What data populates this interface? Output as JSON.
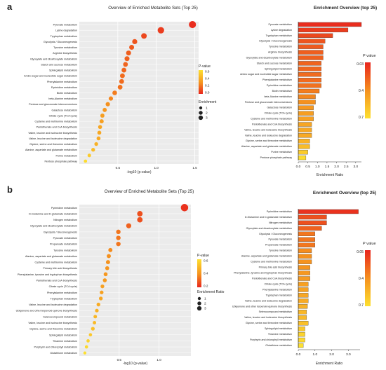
{
  "palette": {
    "high": "#fde030",
    "mid": "#f5901e",
    "low": "#e8251e",
    "panel_bg": "#ebebeb",
    "grid": "#ffffff",
    "bar_edge": "#333333"
  },
  "chart_data": [
    {
      "panel": "a",
      "type": "scatter",
      "title": "Overview of Enriched Metabolite Sets (Top 25)",
      "xlabel": "-log10 (p-value)",
      "xlim": [
        0,
        1.55
      ],
      "xticks": [
        "0.5",
        "1.0",
        "1.5"
      ],
      "categories": [
        "Pyruvate metabolism",
        "Lysine degradation",
        "Tryptophan metabolism",
        "Glycolysis / Gluconeogenesis",
        "Tyrosine metabolism",
        "Arginine biosynthesis",
        "Glyoxylate and dicarboxylate metabolism",
        "Starch and sucrose metabolism",
        "Sphingolipid metabolism",
        "Amino sugar and nucleotide sugar metabolism",
        "Phenylalanine metabolism",
        "Pyrimidine metabolism",
        "Biotin metabolism",
        "beta-Alanine metabolism",
        "Pentose and glucuronate interconversions",
        "Galactose metabolism",
        "Citrate cycle (TCA cycle)",
        "Cysteine and methionine metabolism",
        "Pantothenate and CoA biosynthesis",
        "Valine, leucine and isoleucine biosynthesis",
        "Valine, leucine and isoleucine degradation",
        "Glycine, serine and threonine metabolism",
        "Alanine, aspartate and glutamate metabolism",
        "Purine metabolism",
        "Pentose phosphate pathway"
      ],
      "x": [
        1.47,
        1.06,
        0.84,
        0.72,
        0.68,
        0.64,
        0.62,
        0.6,
        0.58,
        0.56,
        0.55,
        0.53,
        0.46,
        0.41,
        0.37,
        0.33,
        0.3,
        0.29,
        0.27,
        0.26,
        0.25,
        0.22,
        0.18,
        0.13,
        0.08
      ],
      "p_value": [
        0.03,
        0.09,
        0.14,
        0.19,
        0.21,
        0.23,
        0.24,
        0.25,
        0.26,
        0.28,
        0.28,
        0.3,
        0.35,
        0.39,
        0.43,
        0.47,
        0.5,
        0.51,
        0.54,
        0.55,
        0.56,
        0.6,
        0.66,
        0.74,
        0.83
      ],
      "enrichment_ratio": [
        3.3,
        2.6,
        1.8,
        1.4,
        1.3,
        1.3,
        1.3,
        1.2,
        1.2,
        1.2,
        1.2,
        1.2,
        1.1,
        0.9,
        0.9,
        0.8,
        0.8,
        0.8,
        0.7,
        0.7,
        0.7,
        0.6,
        0.6,
        0.5,
        0.4
      ],
      "legend_pvalue": {
        "title": "P-value",
        "ticks": [
          "0.6",
          "0.4",
          "0.2",
          "0.0"
        ]
      },
      "legend_enrichment": {
        "title": "Enrichment",
        "ticks": [
          "1",
          "2",
          "3"
        ]
      },
      "bar_panel": {
        "type": "bar",
        "title": "Enrichment Overview (top 25)",
        "xlabel": "Enrichment Ratio",
        "xticks": [
          "0.0",
          "0.5",
          "1.0",
          "1.5",
          "2.0",
          "2.5",
          "3.0"
        ],
        "xmax": 3.3,
        "legend": {
          "title": "P value",
          "ticks": [
            "0.03",
            "0.4",
            "0.7"
          ]
        }
      }
    },
    {
      "panel": "b",
      "type": "scatter",
      "title": "Overview of Enriched Metabolite Sets (Top 25)",
      "xlabel": "-log10 (p-value)",
      "xlim": [
        0,
        1.4
      ],
      "xticks": [
        "0.5",
        "1.0"
      ],
      "categories": [
        "Pyrimidine metabolism",
        "D-Glutamine and D-glutamate metabolism",
        "Nitrogen metabolism",
        "Glyoxylate and dicarboxylate metabolism",
        "Glycolysis / Gluconeogenesis",
        "Pyruvate metabolism",
        "Propanoate metabolism",
        "Tyrosine metabolism",
        "Alanine, aspartate and glutamate metabolism",
        "Cysteine and methionine metabolism",
        "Primary bile acid biosynthesis",
        "Phenylalanine, tyrosine and tryptophan biosynthesis",
        "Pantothenate and CoA biosynthesis",
        "Citrate cycle (TCA cycle)",
        "Phenylalanine metabolism",
        "Tryptophan metabolism",
        "Valine, leucine and isoleucine degradation",
        "Ubiquinone and other terpenoid-quinone biosynthesis",
        "Selenocompound metabolism",
        "Valine, leucine and isoleucine biosynthesis",
        "Glycine, serine and threonine metabolism",
        "Sphingolipid metabolism",
        "Thiamine metabolism",
        "Porphyrin and chlorophyll metabolism",
        "Glutathione metabolism"
      ],
      "x": [
        1.32,
        0.76,
        0.76,
        0.62,
        0.49,
        0.49,
        0.49,
        0.39,
        0.37,
        0.36,
        0.35,
        0.33,
        0.32,
        0.29,
        0.28,
        0.27,
        0.24,
        0.22,
        0.2,
        0.19,
        0.17,
        0.14,
        0.11,
        0.09,
        0.07
      ],
      "p_value": [
        0.05,
        0.17,
        0.17,
        0.24,
        0.32,
        0.32,
        0.32,
        0.41,
        0.43,
        0.44,
        0.45,
        0.47,
        0.48,
        0.51,
        0.52,
        0.54,
        0.57,
        0.6,
        0.63,
        0.65,
        0.68,
        0.72,
        0.78,
        0.81,
        0.85
      ],
      "enrichment_ratio": [
        3.6,
        1.7,
        1.7,
        1.4,
        1.0,
        1.0,
        1.0,
        0.8,
        0.8,
        0.8,
        0.7,
        0.7,
        0.7,
        0.6,
        0.6,
        0.6,
        0.6,
        0.55,
        0.5,
        0.5,
        0.6,
        0.4,
        0.4,
        0.4,
        0.3
      ],
      "legend_pvalue": {
        "title": "P-value",
        "ticks": [
          "0.6",
          "0.4",
          "0.2"
        ]
      },
      "legend_enrichment": {
        "title": "Enrichment Ratio",
        "ticks": [
          "1",
          "2",
          "3"
        ]
      },
      "bar_panel": {
        "type": "bar",
        "title": "Enrichment Overview (top 25)",
        "xlabel": "Enrichment Ratio",
        "xticks": [
          "0.0",
          "1.0",
          "2.0",
          "3.0"
        ],
        "xmax": 3.7,
        "legend": {
          "title": "P value",
          "ticks": [
            "0.05",
            "0.4",
            "0.7"
          ]
        }
      }
    }
  ]
}
